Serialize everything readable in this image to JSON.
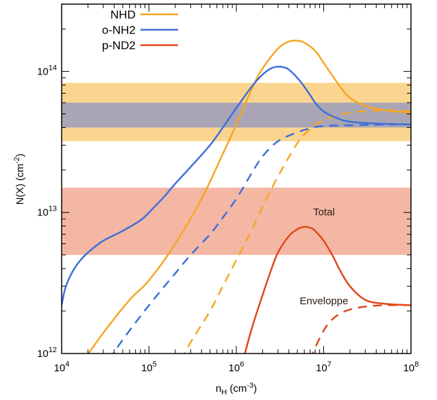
{
  "chart_data": {
    "type": "line",
    "title": "",
    "xlabel": {
      "base": "n",
      "sub": "H",
      "unit": " (cm",
      "sup": "-3",
      "close": ")"
    },
    "ylabel": {
      "base": "N(X) (cm",
      "sup": "-2",
      "close": ")"
    },
    "xscale": "log",
    "yscale": "log",
    "xlim": [
      10000,
      100000000
    ],
    "ylim": [
      1000000000000.0,
      300000000000000.0
    ],
    "x_ticks": [
      {
        "value": 10000,
        "base": "10",
        "exp": "4"
      },
      {
        "value": 100000,
        "base": "10",
        "exp": "5"
      },
      {
        "value": 1000000,
        "base": "10",
        "exp": "6"
      },
      {
        "value": 10000000,
        "base": "10",
        "exp": "7"
      },
      {
        "value": 100000000,
        "base": "10",
        "exp": "8"
      }
    ],
    "y_ticks": [
      {
        "value": 1000000000000.0,
        "base": "10",
        "exp": "12"
      },
      {
        "value": 10000000000000.0,
        "base": "10",
        "exp": "13"
      },
      {
        "value": 100000000000000.0,
        "base": "10",
        "exp": "14"
      }
    ],
    "grid": false,
    "legend_position": "top-left",
    "colors": {
      "NHD": "#f5a623",
      "o-NH2": "#3f6fd8",
      "p-ND2": "#e0471a"
    },
    "bands": [
      {
        "species": "NHD",
        "y_range": [
          32000000000000.0,
          83000000000000.0
        ],
        "color": "#fbd590"
      },
      {
        "species": "o-NH2",
        "y_range": [
          40000000000000.0,
          60000000000000.0
        ],
        "color": "#a9a5b4"
      },
      {
        "species": "p-ND2",
        "y_range": [
          5000000000000.0,
          15000000000000.0
        ],
        "color": "#f3b7a3"
      }
    ],
    "series": [
      {
        "name": "NHD",
        "component": "total",
        "style": "solid",
        "x": [
          18000,
          30000,
          60000,
          100000,
          200000,
          400000,
          700000,
          1000000,
          1500000,
          2000000,
          3000000,
          4000000,
          5000000,
          6000000,
          8000000,
          10000000,
          15000000,
          20000000,
          30000000,
          50000000,
          100000000
        ],
        "y": [
          900000000000.0,
          1400000000000.0,
          2400000000000.0,
          3300000000000.0,
          6000000000000.0,
          12500000000000.0,
          26000000000000.0,
          42000000000000.0,
          75000000000000.0,
          105000000000000.0,
          145000000000000.0,
          163000000000000.0,
          165000000000000.0,
          160000000000000.0,
          140000000000000.0,
          115000000000000.0,
          80000000000000.0,
          65000000000000.0,
          57000000000000.0,
          53000000000000.0,
          51000000000000.0
        ]
      },
      {
        "name": "NHD",
        "component": "envelope",
        "style": "dashed",
        "x": [
          230000,
          300000,
          500000,
          700000,
          1000000,
          1500000,
          2000000,
          3000000,
          5000000,
          7000000,
          10000000,
          20000000,
          50000000,
          100000000
        ],
        "y": [
          900000000000.0,
          1200000000000.0,
          2000000000000.0,
          3000000000000.0,
          4600000000000.0,
          7500000000000.0,
          11000000000000.0,
          18000000000000.0,
          31000000000000.0,
          39000000000000.0,
          45000000000000.0,
          51000000000000.0,
          53000000000000.0,
          52000000000000.0
        ]
      },
      {
        "name": "o-NH2",
        "component": "total",
        "style": "solid",
        "x": [
          10000,
          11000,
          13000,
          16000,
          20000,
          30000,
          50000,
          80000,
          100000,
          150000,
          200000,
          300000,
          500000,
          700000,
          1000000,
          1500000,
          2000000,
          2500000,
          3000000,
          3500000,
          4000000,
          5000000,
          6000000,
          7000000,
          8000000,
          10000000,
          15000000,
          20000000,
          30000000,
          50000000,
          100000000
        ],
        "y": [
          2200000000000.0,
          2900000000000.0,
          3700000000000.0,
          4500000000000.0,
          5200000000000.0,
          6300000000000.0,
          7400000000000.0,
          8800000000000.0,
          10000000000000.0,
          13000000000000.0,
          16000000000000.0,
          21000000000000.0,
          30000000000000.0,
          40000000000000.0,
          55000000000000.0,
          78000000000000.0,
          95000000000000.0,
          105000000000000.0,
          108000000000000.0,
          107000000000000.0,
          103000000000000.0,
          90000000000000.0,
          78000000000000.0,
          68000000000000.0,
          60000000000000.0,
          52000000000000.0,
          46000000000000.0,
          44000000000000.0,
          43000000000000.0,
          42500000000000.0,
          42000000000000.0
        ]
      },
      {
        "name": "o-NH2",
        "component": "envelope",
        "style": "dashed",
        "x": [
          35000,
          50000,
          100000,
          200000,
          300000,
          500000,
          700000,
          1000000,
          1500000,
          2000000,
          3000000,
          5000000,
          7000000,
          10000000,
          20000000,
          50000000,
          100000000
        ],
        "y": [
          900000000000.0,
          1250000000000.0,
          2200000000000.0,
          3700000000000.0,
          5000000000000.0,
          7000000000000.0,
          9200000000000.0,
          12500000000000.0,
          19000000000000.0,
          25000000000000.0,
          32000000000000.0,
          37000000000000.0,
          39500000000000.0,
          41000000000000.0,
          41500000000000.0,
          42000000000000.0,
          42000000000000.0
        ]
      },
      {
        "name": "p-ND2",
        "component": "total",
        "style": "solid",
        "x": [
          1200000,
          1500000,
          2000000,
          2500000,
          3000000,
          4000000,
          5000000,
          6000000,
          7000000,
          8000000,
          10000000,
          13000000,
          15000000,
          20000000,
          30000000,
          50000000,
          100000000
        ],
        "y": [
          900000000000.0,
          1500000000000.0,
          2600000000000.0,
          3900000000000.0,
          5200000000000.0,
          6800000000000.0,
          7600000000000.0,
          7900000000000.0,
          7800000000000.0,
          7400000000000.0,
          6300000000000.0,
          4800000000000.0,
          4000000000000.0,
          3000000000000.0,
          2400000000000.0,
          2250000000000.0,
          2200000000000.0
        ]
      },
      {
        "name": "p-ND2",
        "component": "envelope",
        "style": "dashed",
        "x": [
          7000000,
          8000000,
          10000000,
          12000000,
          15000000,
          20000000,
          30000000,
          50000000,
          100000000
        ],
        "y": [
          900000000000.0,
          1100000000000.0,
          1450000000000.0,
          1700000000000.0,
          1900000000000.0,
          2050000000000.0,
          2150000000000.0,
          2200000000000.0,
          2200000000000.0
        ]
      }
    ],
    "legend": [
      {
        "name": "NHD",
        "color": "#f5a623"
      },
      {
        "name": "o-NH2",
        "color": "#3f6fd8"
      },
      {
        "name": "p-ND2",
        "color": "#e0471a"
      }
    ],
    "annotations": [
      {
        "text": "Total",
        "x": 2200000000,
        "y": 9500000000000.0
      },
      {
        "text": "Enveloppe",
        "x": 16000000,
        "y": 2300000000000.0
      }
    ]
  }
}
